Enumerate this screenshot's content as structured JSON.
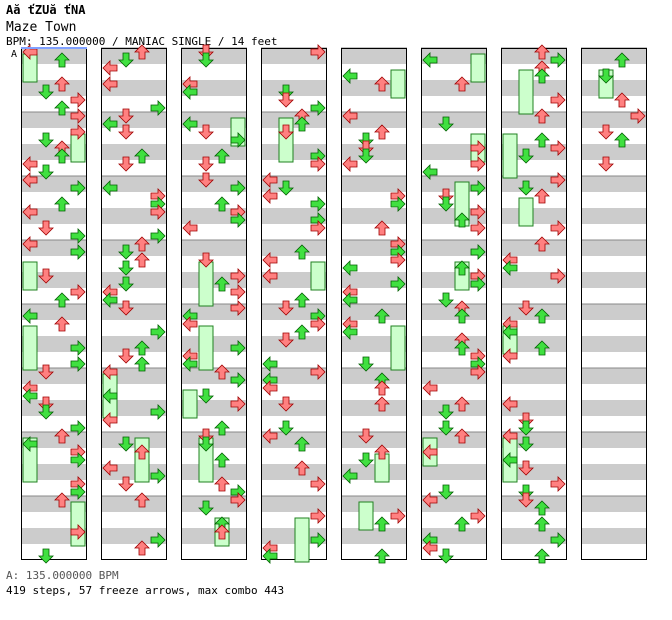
{
  "header": {
    "title": "Aă ťZUă ťNA",
    "subtitle": "Maze Town",
    "info": "BPM: 135.000000 / MANIAC SINGLE / 14 feet"
  },
  "marker_label": "A",
  "footer": {
    "bpm_line": "A: 135.000000 BPM",
    "stats_line": "419 steps, 57 freeze arrows, max combo 443"
  },
  "colors": {
    "quarter": "#ff8080",
    "eighth": "#40e040",
    "freeze_fill": "#ccffcc",
    "stripe": "#cccccc",
    "marker": "#80a0ff"
  },
  "chart_data": {
    "type": "step-chart",
    "columns": 8,
    "measures_per_column": 8,
    "lanes": [
      "left",
      "down",
      "up",
      "right"
    ],
    "measures_with_notes": 58,
    "total_steps": 419,
    "freeze_arrows": 57,
    "max_combo": 443,
    "bpm": 135
  }
}
